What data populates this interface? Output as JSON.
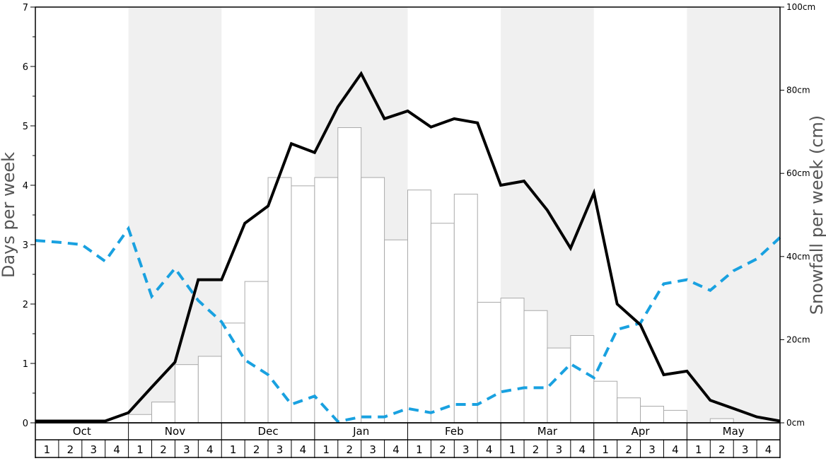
{
  "chart_data": {
    "type": "bar",
    "ylabel_left": "Days per week",
    "ylabel_right": "Snowfall per week (cm)",
    "ylim_left": [
      0,
      7
    ],
    "ylim_right": [
      0,
      100
    ],
    "left_ticks": [
      "0",
      "1",
      "2",
      "3",
      "4",
      "5",
      "6",
      "7"
    ],
    "right_ticks": [
      "0cm",
      "20cm",
      "40cm",
      "60cm",
      "80cm",
      "100cm"
    ],
    "months": [
      "Oct",
      "Nov",
      "Dec",
      "Jan",
      "Feb",
      "Mar",
      "Apr",
      "May"
    ],
    "week_labels": [
      "1",
      "2",
      "3",
      "4"
    ],
    "shaded_months": [
      "Nov",
      "Jan",
      "Mar",
      "May"
    ],
    "snowfall_bars_cm": [
      0,
      0,
      0,
      0,
      2,
      5,
      14,
      16,
      24,
      34,
      59,
      57,
      59,
      71,
      59,
      44,
      56,
      48,
      55,
      29,
      30,
      27,
      18,
      21,
      10,
      6,
      4,
      3,
      0,
      1,
      0,
      0
    ],
    "snow_days_line": [
      0.03,
      0.03,
      0.03,
      0.03,
      0.17,
      0.6,
      1.02,
      2.41,
      2.41,
      3.36,
      3.65,
      4.7,
      4.55,
      5.32,
      5.88,
      5.12,
      5.25,
      4.98,
      5.12,
      5.05,
      4.0,
      4.07,
      3.58,
      2.94,
      3.87,
      2.0,
      1.65,
      0.81,
      0.87,
      0.38,
      0.24,
      0.1,
      0.03
    ],
    "second_line_dashed": [
      3.07,
      3.04,
      3.0,
      2.72,
      3.27,
      2.13,
      2.6,
      2.06,
      1.7,
      1.06,
      0.81,
      0.31,
      0.45,
      0.02,
      0.1,
      0.1,
      0.24,
      0.17,
      0.31,
      0.31,
      0.52,
      0.59,
      0.59,
      0.99,
      0.76,
      1.57,
      1.68,
      2.34,
      2.41,
      2.23,
      2.56,
      2.76,
      3.12
    ],
    "colors": {
      "bars_fill": "#ffffff",
      "bars_stroke": "#aaaaaa",
      "solid_line": "#000000",
      "dashed_line": "#19a1e0",
      "shaded_band": "#f0f0f0",
      "axis": "#000000"
    }
  }
}
